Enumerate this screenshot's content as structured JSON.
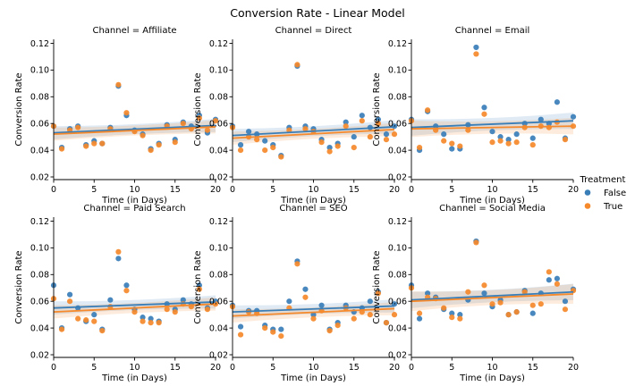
{
  "chart_data": {
    "type": "scatter",
    "title": "Conversion Rate - Linear Model",
    "xlabel": "Time (in Days)",
    "ylabel": "Conversion Rate",
    "xlim": [
      0,
      20
    ],
    "ylim": [
      0.018,
      0.123
    ],
    "xticks": [
      "0",
      "5",
      "10",
      "15",
      "20"
    ],
    "yticks": [
      "0.02",
      "0.04",
      "0.06",
      "0.08",
      "0.10",
      "0.12"
    ],
    "ytick_values": [
      0.02,
      0.04,
      0.06,
      0.08,
      0.1,
      0.12
    ],
    "xtick_values": [
      0,
      5,
      10,
      15,
      20
    ],
    "legend": {
      "title": "Treatment",
      "placement": "right",
      "entries": [
        {
          "label": "False",
          "color": "#3a7eb8"
        },
        {
          "label": "True",
          "color": "#f5892b"
        }
      ]
    },
    "panels": [
      {
        "title": "Channel = Affiliate",
        "series": [
          {
            "name": "False",
            "color": "#3a7eb8",
            "x": [
              0,
              1,
              2,
              3,
              4,
              5,
              6,
              7,
              8,
              9,
              10,
              11,
              12,
              13,
              14,
              15,
              16,
              17,
              18,
              19,
              20
            ],
            "y": [
              0.058,
              0.042,
              0.056,
              0.058,
              0.044,
              0.047,
              0.045,
              0.057,
              0.088,
              0.066,
              0.055,
              0.052,
              0.041,
              0.045,
              0.059,
              0.048,
              0.061,
              0.058,
              0.066,
              0.053,
              0.063
            ],
            "fit": [
              0.053,
              0.0585
            ],
            "ci": 0.004
          },
          {
            "name": "True",
            "color": "#f5892b",
            "x": [
              0,
              1,
              2,
              3,
              4,
              5,
              6,
              7,
              8,
              9,
              10,
              11,
              12,
              13,
              14,
              15,
              16,
              17,
              18,
              19,
              20
            ],
            "y": [
              0.058,
              0.041,
              0.055,
              0.057,
              0.043,
              0.045,
              0.045,
              0.056,
              0.089,
              0.068,
              0.054,
              0.051,
              0.04,
              0.044,
              0.058,
              0.046,
              0.06,
              0.056,
              0.064,
              0.055,
              0.062
            ],
            "fit": [
              0.052,
              0.0575
            ],
            "ci": 0.004
          }
        ]
      },
      {
        "title": "Channel = Direct",
        "series": [
          {
            "name": "False",
            "color": "#3a7eb8",
            "x": [
              0,
              1,
              2,
              3,
              4,
              5,
              6,
              7,
              8,
              9,
              10,
              11,
              12,
              13,
              14,
              15,
              16,
              17,
              18,
              19,
              20
            ],
            "y": [
              0.058,
              0.044,
              0.054,
              0.052,
              0.047,
              0.044,
              0.036,
              0.057,
              0.103,
              0.058,
              0.056,
              0.048,
              0.042,
              0.045,
              0.061,
              0.05,
              0.066,
              0.057,
              0.063,
              0.052,
              0.058
            ],
            "fit": [
              0.051,
              0.0575
            ],
            "ci": 0.004
          },
          {
            "name": "True",
            "color": "#f5892b",
            "x": [
              0,
              1,
              2,
              3,
              4,
              5,
              6,
              7,
              8,
              9,
              10,
              11,
              12,
              13,
              14,
              15,
              16,
              17,
              18,
              19,
              20
            ],
            "y": [
              0.057,
              0.04,
              0.05,
              0.048,
              0.04,
              0.042,
              0.035,
              0.055,
              0.104,
              0.056,
              0.054,
              0.046,
              0.039,
              0.043,
              0.058,
              0.042,
              0.062,
              0.05,
              0.06,
              0.048,
              0.052
            ],
            "fit": [
              0.049,
              0.0555
            ],
            "ci": 0.004
          }
        ]
      },
      {
        "title": "Channel = Email",
        "series": [
          {
            "name": "False",
            "color": "#3a7eb8",
            "x": [
              0,
              1,
              2,
              3,
              4,
              5,
              6,
              7,
              8,
              9,
              10,
              11,
              12,
              13,
              14,
              15,
              16,
              17,
              18,
              19,
              20
            ],
            "y": [
              0.063,
              0.04,
              0.069,
              0.058,
              0.052,
              0.041,
              0.041,
              0.059,
              0.117,
              0.072,
              0.054,
              0.05,
              0.048,
              0.052,
              0.06,
              0.049,
              0.063,
              0.06,
              0.076,
              0.049,
              0.065
            ],
            "fit": [
              0.057,
              0.062
            ],
            "ci": 0.005
          },
          {
            "name": "True",
            "color": "#f5892b",
            "x": [
              0,
              1,
              2,
              3,
              4,
              5,
              6,
              7,
              8,
              9,
              10,
              11,
              12,
              13,
              14,
              15,
              16,
              17,
              18,
              19,
              20
            ],
            "y": [
              0.062,
              0.042,
              0.07,
              0.055,
              0.047,
              0.045,
              0.043,
              0.055,
              0.112,
              0.067,
              0.046,
              0.047,
              0.045,
              0.046,
              0.057,
              0.044,
              0.058,
              0.057,
              0.061,
              0.048,
              0.058
            ],
            "fit": [
              0.056,
              0.058
            ],
            "ci": 0.005
          }
        ]
      },
      {
        "title": "Channel = Paid Search",
        "series": [
          {
            "name": "False",
            "color": "#3a7eb8",
            "x": [
              0,
              1,
              2,
              3,
              4,
              5,
              6,
              7,
              8,
              9,
              10,
              11,
              12,
              13,
              14,
              15,
              16,
              17,
              18,
              19,
              20
            ],
            "y": [
              0.072,
              0.04,
              0.065,
              0.055,
              0.045,
              0.05,
              0.039,
              0.061,
              0.092,
              0.072,
              0.054,
              0.048,
              0.047,
              0.045,
              0.058,
              0.054,
              0.061,
              0.058,
              0.072,
              0.055,
              0.06
            ],
            "fit": [
              0.055,
              0.0595
            ],
            "ci": 0.004
          },
          {
            "name": "True",
            "color": "#f5892b",
            "x": [
              0,
              1,
              2,
              3,
              4,
              5,
              6,
              7,
              8,
              9,
              10,
              11,
              12,
              13,
              14,
              15,
              16,
              17,
              18,
              19,
              20
            ],
            "y": [
              0.062,
              0.039,
              0.06,
              0.047,
              0.046,
              0.045,
              0.038,
              0.056,
              0.097,
              0.068,
              0.052,
              0.045,
              0.044,
              0.044,
              0.054,
              0.052,
              0.058,
              0.056,
              0.069,
              0.054,
              0.058
            ],
            "fit": [
              0.052,
              0.058
            ],
            "ci": 0.004
          }
        ]
      },
      {
        "title": "Channel = SEO",
        "series": [
          {
            "name": "False",
            "color": "#3a7eb8",
            "x": [
              0,
              1,
              2,
              3,
              4,
              5,
              6,
              7,
              8,
              9,
              10,
              11,
              12,
              13,
              14,
              15,
              16,
              17,
              18,
              19,
              20
            ],
            "y": [
              0.057,
              0.041,
              0.053,
              0.053,
              0.042,
              0.039,
              0.039,
              0.06,
              0.09,
              0.069,
              0.05,
              0.057,
              0.039,
              0.044,
              0.057,
              0.052,
              0.055,
              0.06,
              0.067,
              0.044,
              0.058
            ],
            "fit": [
              0.052,
              0.0565
            ],
            "ci": 0.004
          },
          {
            "name": "True",
            "color": "#f5892b",
            "x": [
              0,
              1,
              2,
              3,
              4,
              5,
              6,
              7,
              8,
              9,
              10,
              11,
              12,
              13,
              14,
              15,
              16,
              17,
              18,
              19,
              20
            ],
            "y": [
              0.056,
              0.035,
              0.052,
              0.051,
              0.04,
              0.037,
              0.034,
              0.055,
              0.088,
              0.063,
              0.047,
              0.053,
              0.038,
              0.042,
              0.055,
              0.047,
              0.052,
              0.05,
              0.066,
              0.044,
              0.05
            ],
            "fit": [
              0.049,
              0.0545
            ],
            "ci": 0.004
          }
        ]
      },
      {
        "title": "Channel = Social Media",
        "series": [
          {
            "name": "False",
            "color": "#3a7eb8",
            "x": [
              0,
              1,
              2,
              3,
              4,
              5,
              6,
              7,
              8,
              9,
              10,
              11,
              12,
              13,
              14,
              15,
              16,
              17,
              18,
              19,
              20
            ],
            "y": [
              0.072,
              0.047,
              0.066,
              0.063,
              0.054,
              0.051,
              0.05,
              0.061,
              0.105,
              0.066,
              0.056,
              0.061,
              0.05,
              0.052,
              0.068,
              0.051,
              0.066,
              0.076,
              0.077,
              0.06,
              0.069
            ],
            "fit": [
              0.061,
              0.067
            ],
            "ci": 0.005
          },
          {
            "name": "True",
            "color": "#f5892b",
            "x": [
              0,
              1,
              2,
              3,
              4,
              5,
              6,
              7,
              8,
              9,
              10,
              11,
              12,
              13,
              14,
              15,
              16,
              17,
              18,
              19,
              20
            ],
            "y": [
              0.07,
              0.051,
              0.063,
              0.062,
              0.055,
              0.048,
              0.047,
              0.067,
              0.104,
              0.072,
              0.058,
              0.059,
              0.05,
              0.052,
              0.067,
              0.057,
              0.058,
              0.082,
              0.073,
              0.054,
              0.068
            ],
            "fit": [
              0.06,
              0.0655
            ],
            "ci": 0.006
          }
        ]
      }
    ]
  }
}
